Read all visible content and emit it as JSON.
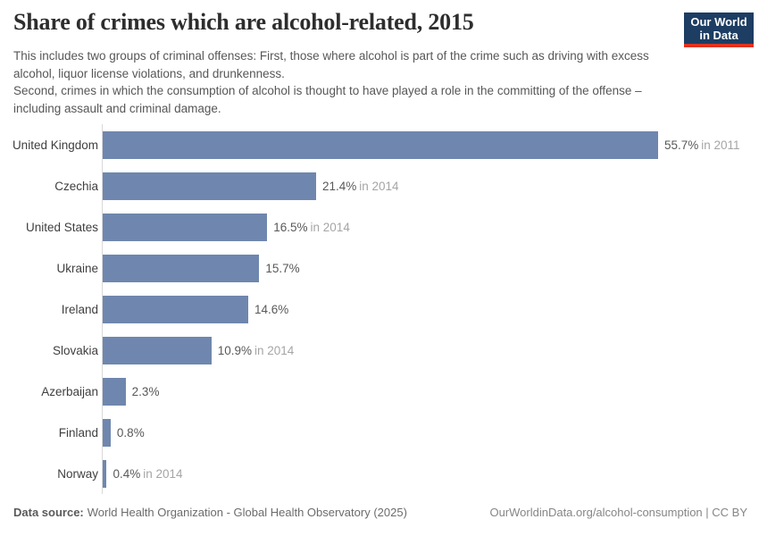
{
  "header": {
    "title": "Share of crimes which are alcohol-related, 2015",
    "subtitle_p1": "This includes two groups of criminal offenses: First, those where alcohol is part of the crime such as driving with excess alcohol, liquor license violations, and drunkenness.",
    "subtitle_p2": "Second, crimes in which the consumption of alcohol is thought to have played a role in the committing of the offense – including assault and criminal damage.",
    "logo": {
      "line1": "Our World",
      "line2": "in Data",
      "bg_color": "#1d3d63",
      "accent_color": "#e0321f"
    }
  },
  "chart_data": {
    "type": "bar",
    "orientation": "horizontal",
    "title": "Share of crimes which are alcohol-related, 2015",
    "unit": "%",
    "grid": false,
    "legend": false,
    "xlim": [
      0,
      60
    ],
    "categories": [
      "United Kingdom",
      "Czechia",
      "United States",
      "Ukraine",
      "Ireland",
      "Slovakia",
      "Azerbaijan",
      "Finland",
      "Norway"
    ],
    "values": [
      55.7,
      21.4,
      16.5,
      15.7,
      14.6,
      10.9,
      2.3,
      0.8,
      0.4
    ],
    "value_labels": [
      "55.7%",
      "21.4%",
      "16.5%",
      "15.7%",
      "14.6%",
      "10.9%",
      "2.3%",
      "0.8%",
      "0.4%"
    ],
    "year_notes": [
      "in 2011",
      "in 2014",
      "in 2014",
      "",
      "",
      "in 2014",
      "",
      "",
      "in 2014"
    ],
    "bar_color": "#6f87ae"
  },
  "footer": {
    "source_label": "Data source:",
    "source_value": "World Health Organization - Global Health Observatory (2025)",
    "credit": "OurWorldinData.org/alcohol-consumption | CC BY"
  }
}
